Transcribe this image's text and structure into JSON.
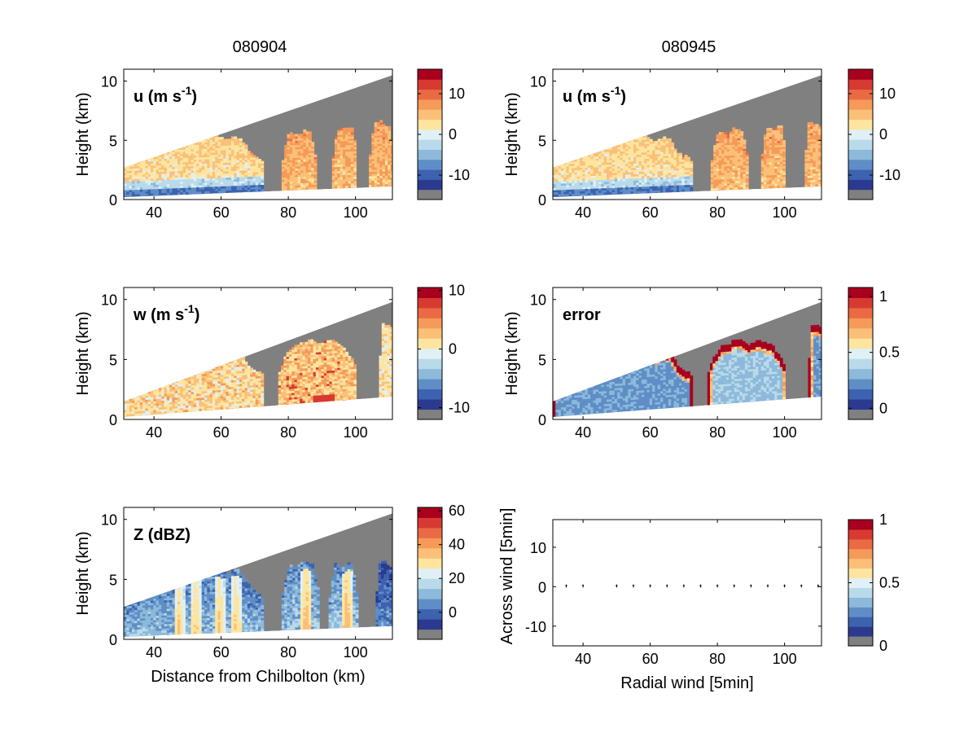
{
  "titles": {
    "left": "080904",
    "right": "080945"
  },
  "colors": {
    "missing": "#808080",
    "palette": [
      "#2b3a8f",
      "#3d62b0",
      "#5f8ec6",
      "#8db9da",
      "#b9daea",
      "#e0f0f5",
      "#fde5a0",
      "#fbc078",
      "#f59a58",
      "#ea6a44",
      "#d73a31",
      "#a8001e"
    ]
  },
  "panels": [
    {
      "id": "u-left",
      "label_main": "u (m s",
      "label_sup": "-1",
      "label_tail": ")",
      "ylabel": "Height (km)",
      "xlabel": "",
      "colorbar_ticks": [
        {
          "v": 10,
          "label": "10"
        },
        {
          "v": 0,
          "label": "0"
        },
        {
          "v": -10,
          "label": "-10"
        }
      ],
      "cb_range": [
        -16,
        16
      ]
    },
    {
      "id": "u-right",
      "label_main": "u (m s",
      "label_sup": "-1",
      "label_tail": ")",
      "ylabel": "Height (km)",
      "xlabel": "",
      "colorbar_ticks": [
        {
          "v": 10,
          "label": "10"
        },
        {
          "v": 0,
          "label": "0"
        },
        {
          "v": -10,
          "label": "-10"
        }
      ],
      "cb_range": [
        -16,
        16
      ]
    },
    {
      "id": "w-left",
      "label_main": "w (m s",
      "label_sup": "-1",
      "label_tail": ")",
      "ylabel": "Height (km)",
      "xlabel": "",
      "colorbar_ticks": [
        {
          "v": 10,
          "label": "10"
        },
        {
          "v": 0,
          "label": "0"
        },
        {
          "v": -10,
          "label": "-10"
        }
      ],
      "cb_range": [
        -12,
        10.5
      ]
    },
    {
      "id": "error-right",
      "label_main": "error",
      "label_sup": "",
      "label_tail": "",
      "ylabel": "Height (km)",
      "xlabel": "",
      "colorbar_ticks": [
        {
          "v": 1,
          "label": "1"
        },
        {
          "v": 0.5,
          "label": "0.5"
        },
        {
          "v": 0,
          "label": "0"
        }
      ],
      "cb_range": [
        -0.1,
        1.08
      ]
    },
    {
      "id": "z-left",
      "label_main": "Z (dBZ)",
      "label_sup": "",
      "label_tail": "",
      "ylabel": "Height (km)",
      "xlabel": "Distance from Chilbolton (km)",
      "colorbar_ticks": [
        {
          "v": 60,
          "label": "60"
        },
        {
          "v": 40,
          "label": "40"
        },
        {
          "v": 20,
          "label": "20"
        },
        {
          "v": 0,
          "label": "0"
        }
      ],
      "cb_range": [
        -16,
        62
      ]
    },
    {
      "id": "arrows-right",
      "label_main": "",
      "label_sup": "",
      "label_tail": "",
      "ylabel": "Across wind [5min]",
      "xlabel": "Radial wind [5min]",
      "colorbar_ticks": [
        {
          "v": 1,
          "label": "1"
        },
        {
          "v": 0.5,
          "label": "0.5"
        },
        {
          "v": 0,
          "label": "0"
        }
      ],
      "cb_range": [
        0,
        1
      ]
    }
  ],
  "chart_data": [
    {
      "type": "heatmap",
      "title": "080904",
      "variable": "u (m s-1)",
      "xlabel": "",
      "ylabel": "Height (km)",
      "xlim": [
        31,
        111
      ],
      "ylim": [
        0,
        11
      ],
      "xticks": [
        40,
        60,
        80,
        100
      ],
      "yticks": [
        0,
        5,
        10
      ],
      "scan_top_km": [
        2.7,
        10.5
      ],
      "scan_bottom_km": [
        0.2,
        1.1
      ],
      "clouds": [
        {
          "x": [
            31,
            72
          ],
          "top_km": 4.8,
          "mean_value": 0,
          "low_level_value": -12
        },
        {
          "x": [
            78,
            88
          ],
          "top_km": 5.2,
          "mean_value": 3
        },
        {
          "x": [
            93,
            100
          ],
          "top_km": 5.6,
          "mean_value": 3
        },
        {
          "x": [
            104,
            111
          ],
          "top_km": 6.0,
          "mean_value": 3
        }
      ]
    },
    {
      "type": "heatmap",
      "title": "080945",
      "variable": "u (m s-1)",
      "xlabel": "",
      "ylabel": "Height (km)",
      "xlim": [
        31,
        111
      ],
      "ylim": [
        0,
        11
      ],
      "xticks": [
        40,
        60,
        80,
        100
      ],
      "yticks": [
        0,
        5,
        10
      ],
      "scan_top_km": [
        2.7,
        10.5
      ],
      "scan_bottom_km": [
        0.2,
        1.1
      ],
      "clouds": [
        {
          "x": [
            31,
            72
          ],
          "top_km": 4.8,
          "mean_value": 0,
          "low_level_value": -12
        },
        {
          "x": [
            78,
            89
          ],
          "top_km": 5.3,
          "mean_value": 3
        },
        {
          "x": [
            93,
            100
          ],
          "top_km": 5.7,
          "mean_value": 3
        },
        {
          "x": [
            106,
            111
          ],
          "top_km": 6.0,
          "mean_value": 3
        }
      ]
    },
    {
      "type": "heatmap",
      "title": "",
      "variable": "w (m s-1)",
      "xlabel": "",
      "ylabel": "Height (km)",
      "xlim": [
        31,
        111
      ],
      "ylim": [
        0,
        11
      ],
      "xticks": [
        40,
        60,
        80,
        100
      ],
      "yticks": [
        0,
        5,
        10
      ],
      "scan_top_km": [
        1.5,
        9.8
      ],
      "scan_bottom_km": [
        0.2,
        1.9
      ],
      "clouds": [
        {
          "x": [
            31,
            72
          ],
          "top_km": 5.2,
          "mean_value": 1
        },
        {
          "x": [
            77,
            100
          ],
          "top_km": 6.0,
          "mean_value": 2,
          "max_value": 8
        },
        {
          "x": [
            107,
            111
          ],
          "top_km": 7.5,
          "mean_value": 0
        }
      ]
    },
    {
      "type": "heatmap",
      "title": "",
      "variable": "error",
      "xlabel": "",
      "ylabel": "Height (km)",
      "xlim": [
        31,
        111
      ],
      "ylim": [
        0,
        11
      ],
      "xticks": [
        40,
        60,
        80,
        100
      ],
      "yticks": [
        0,
        5,
        10
      ],
      "scan_top_km": [
        1.5,
        9.8
      ],
      "scan_bottom_km": [
        0.2,
        1.9
      ],
      "clouds": [
        {
          "x": [
            31,
            72
          ],
          "top_km": 5.2,
          "interior_value": 0.1,
          "edge_value": 1
        },
        {
          "x": [
            77,
            100
          ],
          "top_km": 6.0,
          "interior_value": 0.2,
          "edge_value": 1
        },
        {
          "x": [
            107,
            111
          ],
          "top_km": 7.5,
          "edge_value": 1
        }
      ]
    },
    {
      "type": "heatmap",
      "title": "",
      "variable": "Z (dBZ)",
      "xlabel": "Distance from Chilbolton (km)",
      "ylabel": "Height (km)",
      "xlim": [
        31,
        111
      ],
      "ylim": [
        0,
        11
      ],
      "xticks": [
        40,
        60,
        80,
        100
      ],
      "yticks": [
        0,
        5,
        10
      ],
      "scan_top_km": [
        2.7,
        10.5
      ],
      "scan_bottom_km": [
        0.2,
        1.1
      ],
      "clouds": [
        {
          "x": [
            31,
            72
          ],
          "top_km": 5.3,
          "mean_value": 8,
          "cores_at": [
            47,
            52,
            59,
            64
          ],
          "core_value": 32
        },
        {
          "x": [
            78,
            89
          ],
          "top_km": 5.8,
          "mean_value": 10,
          "cores_at": [
            85
          ],
          "core_value": 35
        },
        {
          "x": [
            92,
            100
          ],
          "top_km": 5.8,
          "mean_value": 10,
          "cores_at": [
            97
          ],
          "core_value": 35
        },
        {
          "x": [
            106,
            111
          ],
          "top_km": 6.0,
          "mean_value": 0
        }
      ]
    },
    {
      "type": "scatter",
      "title": "",
      "xlabel": "Radial wind [5min]",
      "ylabel": "Across wind [5min]",
      "xlim": [
        31,
        111
      ],
      "ylim": [
        -15,
        17
      ],
      "xticks": [
        40,
        60,
        80,
        100
      ],
      "yticks": [
        -10,
        0,
        10
      ],
      "x": [
        35,
        40,
        50,
        55,
        60,
        65,
        70,
        75,
        80,
        85,
        90,
        95,
        100,
        105,
        110
      ],
      "y": [
        0,
        0,
        0,
        0,
        0,
        0,
        0,
        0,
        0,
        0,
        0,
        0,
        0,
        0,
        0
      ]
    }
  ]
}
